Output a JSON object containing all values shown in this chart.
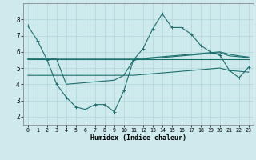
{
  "xlabel": "Humidex (Indice chaleur)",
  "background_color": "#ceeaec",
  "grid_color": "#b0d8da",
  "line_color": "#1a6e6e",
  "xlim": [
    -0.5,
    23.5
  ],
  "ylim": [
    1.5,
    9.0
  ],
  "yticks": [
    2,
    3,
    4,
    5,
    6,
    7,
    8
  ],
  "xticks": [
    0,
    1,
    2,
    3,
    4,
    5,
    6,
    7,
    8,
    9,
    10,
    11,
    12,
    13,
    14,
    15,
    16,
    17,
    18,
    19,
    20,
    21,
    22,
    23
  ],
  "series_marked": [
    [
      7.6,
      6.7,
      5.5,
      4.0,
      3.2,
      2.6,
      2.45,
      2.75,
      2.75,
      2.3,
      3.6,
      5.5,
      6.2,
      7.4,
      8.35,
      7.5,
      7.5,
      7.1,
      6.4,
      6.0,
      5.8,
      4.85,
      4.4,
      5.05
    ]
  ],
  "series_plain": [
    [
      5.55,
      5.55,
      5.55,
      5.55,
      5.55,
      5.55,
      5.55,
      5.55,
      5.55,
      5.55,
      5.55,
      5.55,
      5.6,
      5.65,
      5.7,
      5.75,
      5.8,
      5.85,
      5.9,
      5.95,
      6.0,
      5.85,
      5.75,
      5.68
    ],
    [
      5.55,
      5.55,
      5.55,
      5.55,
      5.55,
      5.55,
      5.55,
      5.55,
      5.55,
      5.55,
      5.55,
      5.55,
      5.55,
      5.55,
      5.55,
      5.55,
      5.55,
      5.55,
      5.55,
      5.55,
      5.55,
      5.55,
      5.55,
      5.55
    ],
    [
      5.55,
      5.55,
      5.55,
      5.55,
      4.0,
      4.05,
      4.1,
      4.15,
      4.2,
      4.25,
      4.55,
      5.5,
      5.55,
      5.6,
      5.65,
      5.7,
      5.75,
      5.8,
      5.85,
      5.9,
      5.95,
      5.75,
      5.7,
      5.65
    ],
    [
      4.55,
      4.55,
      4.55,
      4.55,
      4.55,
      4.55,
      4.55,
      4.55,
      4.55,
      4.55,
      4.55,
      4.55,
      4.6,
      4.65,
      4.7,
      4.75,
      4.8,
      4.85,
      4.9,
      4.95,
      5.0,
      4.85,
      4.8,
      4.75
    ]
  ]
}
